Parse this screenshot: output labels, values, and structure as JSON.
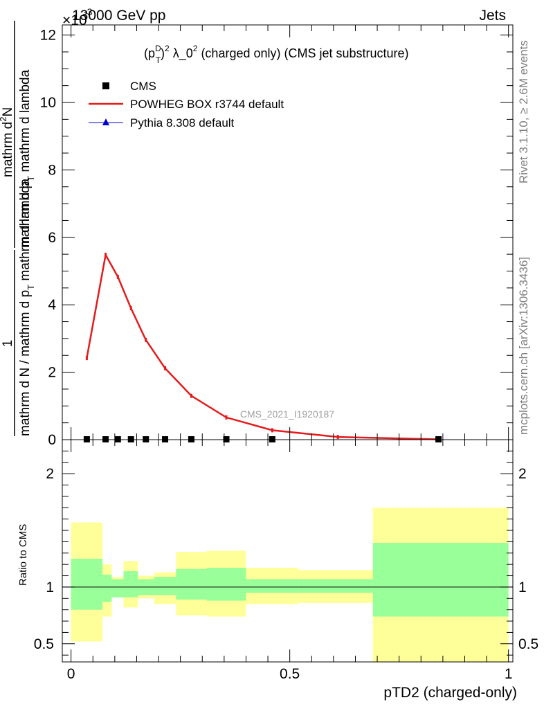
{
  "header": {
    "energy": "13000 GeV pp",
    "process": "Jets",
    "exponent": "×10",
    "exponent_power": "-3"
  },
  "side_text": {
    "rivet": "Rivet 3.1.10, ≥ 2.6M events",
    "mcplots": "mcplots.cern.ch [arXiv:1306.3436]"
  },
  "plot_title": {
    "base": "(p",
    "sup_d": "D",
    "sub_t": "T",
    "rest_1": ")",
    "sup_2a": "2",
    "rest_2": " λ_0",
    "sup_2b": "2",
    "rest_3": " (charged only) (CMS jet substructure)"
  },
  "legend": {
    "cms": "CMS",
    "powheg": "POWHEG BOX r3744 default",
    "pythia": "Pythia 8.308 default"
  },
  "watermark": "CMS_2021_I1920187",
  "y_axis_label": {
    "num": "1",
    "den": "mathrm d N / mathrm d p",
    "den_sub": "T",
    "den_rest": " mathrm d lambda",
    "frac_top": "mathrm d",
    "frac_top_sup": "2",
    "frac_top_rest": "N",
    "frac_bottom": "mathrm d p",
    "frac_bottom_sub": "T",
    "frac_bottom_rest": " mathrm d lambda"
  },
  "ratio_y_label": "Ratio to CMS",
  "x_axis_label": "pTD2 (charged-only)",
  "colors": {
    "powheg": "#e41a1c",
    "pythia": "#0000cc",
    "green_band": "#99ff99",
    "yellow_band": "#ffff99"
  },
  "chart_data": [
    {
      "type": "line",
      "panel": "main",
      "scale_factor": "×10^-3",
      "ylim": [
        0,
        12.3
      ],
      "xlim": [
        -0.02,
        1.01
      ],
      "y_ticks": [
        0,
        2,
        4,
        6,
        8,
        10,
        12
      ],
      "series": [
        {
          "name": "POWHEG BOX r3744 default",
          "x": [
            0.036,
            0.079,
            0.107,
            0.137,
            0.171,
            0.215,
            0.275,
            0.355,
            0.46,
            0.61,
            0.84
          ],
          "y": [
            2.42,
            5.48,
            4.83,
            3.9,
            2.96,
            2.12,
            1.3,
            0.66,
            0.28,
            0.08,
            0.01
          ]
        },
        {
          "name": "CMS",
          "x": [
            0.036,
            0.079,
            0.107,
            0.137,
            0.171,
            0.215,
            0.275,
            0.355,
            0.46,
            0.84
          ],
          "y": [
            0,
            0,
            0,
            0,
            0,
            0,
            0,
            0,
            0,
            0
          ]
        }
      ]
    },
    {
      "type": "area",
      "panel": "ratio",
      "ylim": [
        0.34,
        2.3
      ],
      "xlim": [
        -0.02,
        1.01
      ],
      "y_ticks": [
        0.5,
        1,
        2
      ],
      "x_ticks": [
        0,
        0.5,
        1
      ],
      "bins": [
        {
          "lo": 0.0,
          "hi": 0.072,
          "green": [
            0.8,
            1.25
          ],
          "yellow": [
            0.52,
            1.57
          ]
        },
        {
          "lo": 0.072,
          "hi": 0.093,
          "green": [
            0.87,
            1.11
          ],
          "yellow": [
            0.74,
            1.2
          ]
        },
        {
          "lo": 0.093,
          "hi": 0.12,
          "green": [
            0.91,
            1.07
          ],
          "yellow": [
            0.91,
            1.09
          ]
        },
        {
          "lo": 0.12,
          "hi": 0.153,
          "green": [
            0.91,
            1.14
          ],
          "yellow": [
            0.82,
            1.23
          ]
        },
        {
          "lo": 0.153,
          "hi": 0.19,
          "green": [
            0.93,
            1.07
          ],
          "yellow": [
            0.9,
            1.1
          ]
        },
        {
          "lo": 0.19,
          "hi": 0.24,
          "green": [
            0.93,
            1.09
          ],
          "yellow": [
            0.85,
            1.13
          ]
        },
        {
          "lo": 0.24,
          "hi": 0.31,
          "green": [
            0.89,
            1.16
          ],
          "yellow": [
            0.75,
            1.31
          ]
        },
        {
          "lo": 0.31,
          "hi": 0.4,
          "green": [
            0.88,
            1.17
          ],
          "yellow": [
            0.74,
            1.32
          ]
        },
        {
          "lo": 0.4,
          "hi": 0.52,
          "green": [
            0.95,
            1.07
          ],
          "yellow": [
            0.85,
            1.17
          ]
        },
        {
          "lo": 0.52,
          "hi": 0.69,
          "green": [
            0.95,
            1.07
          ],
          "yellow": [
            0.86,
            1.15
          ]
        },
        {
          "lo": 0.69,
          "hi": 1.0,
          "green": [
            0.74,
            1.39
          ],
          "yellow": [
            0.34,
            1.7
          ]
        }
      ],
      "reference_line": 1
    }
  ]
}
